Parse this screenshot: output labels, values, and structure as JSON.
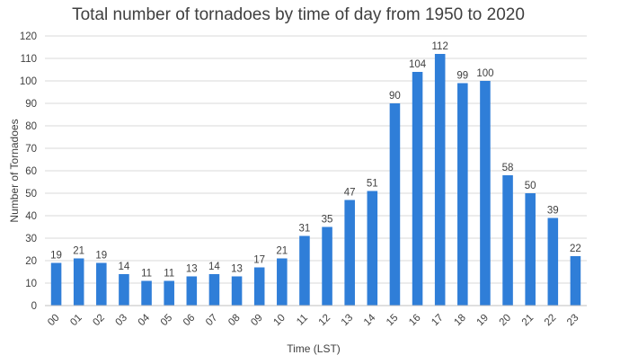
{
  "chart_data": {
    "type": "bar",
    "title": "Total number of tornadoes by time of day from 1950 to 2020",
    "xlabel": "Time (LST)",
    "ylabel": "Number of Tornadoes",
    "categories": [
      "00",
      "01",
      "02",
      "03",
      "04",
      "05",
      "06",
      "07",
      "08",
      "09",
      "10",
      "11",
      "12",
      "13",
      "14",
      "15",
      "16",
      "17",
      "18",
      "19",
      "20",
      "21",
      "22",
      "23"
    ],
    "values": [
      19,
      21,
      19,
      14,
      11,
      11,
      13,
      14,
      13,
      17,
      21,
      31,
      35,
      47,
      51,
      90,
      104,
      112,
      99,
      100,
      58,
      50,
      39,
      22
    ],
    "ylim": [
      0,
      120
    ],
    "yticks": [
      0,
      10,
      20,
      30,
      40,
      50,
      60,
      70,
      80,
      90,
      100,
      110,
      120
    ],
    "grid": true,
    "legend": "none",
    "bar_color": "#2f7ed8"
  }
}
